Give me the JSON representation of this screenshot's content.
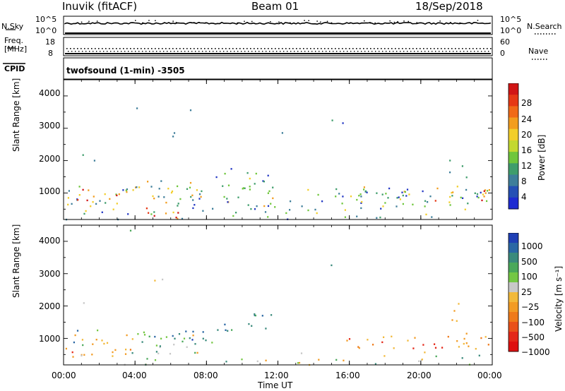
{
  "header": {
    "radar": "Inuvik (fitACF)",
    "beam": "Beam 01",
    "date": "18/Sep/2018"
  },
  "params": {
    "nsky_label": "N.Sky",
    "nsky_left_ticks": [
      "10^5",
      "10^0"
    ],
    "nsky_right_ticks": [
      "10^5",
      "10^0"
    ],
    "nsearch_label": "N.Search",
    "freq_label": "Freq.",
    "freq_unit": "[MHz]",
    "freq_ticks": [
      "18",
      "8"
    ],
    "nave_ticks": [
      "60",
      "0"
    ],
    "nave_label": "Nave",
    "cpid_label": "CPID",
    "cpid_value": "twofsound (1-min) -3505"
  },
  "chart_data": [
    {
      "type": "heatmap",
      "name": "power",
      "ylabel": "Slant Range [km]",
      "xlabel": "",
      "x_ticks": [
        "00:00",
        "04:00",
        "08:00",
        "12:00",
        "16:00",
        "20:00",
        "00:00"
      ],
      "y_ticks": [
        1000,
        2000,
        3000,
        4000
      ],
      "xlim_hours": [
        0,
        24
      ],
      "ylim_km": [
        180,
        4500
      ],
      "colorbar": {
        "label": "Power [dB]",
        "ticks": [
          "4",
          "8",
          "12",
          "16",
          "20",
          "24",
          "28"
        ],
        "colors": [
          "#1e2bd2",
          "#2550b5",
          "#3e7e9a",
          "#3f9d6c",
          "#6fc63c",
          "#c3d830",
          "#f2ce2a",
          "#f29d1e",
          "#f06a18",
          "#e63815",
          "#d11515"
        ]
      }
    },
    {
      "type": "heatmap",
      "name": "velocity",
      "ylabel": "Slant Range [km]",
      "xlabel": "Time UT",
      "x_ticks": [
        "00:00",
        "04:00",
        "08:00",
        "12:00",
        "16:00",
        "20:00",
        "00:00"
      ],
      "y_ticks": [
        1000,
        2000,
        3000,
        4000
      ],
      "xlim_hours": [
        0,
        24
      ],
      "ylim_km": [
        180,
        4500
      ],
      "colorbar": {
        "label": "Velocity [m s⁻¹]",
        "ticks": [
          "1000",
          "500",
          "100",
          "25",
          "−25",
          "−100",
          "−500",
          "−1000"
        ],
        "colors": [
          "#1f3fb5",
          "#2a67a4",
          "#3a8a7c",
          "#4aa85a",
          "#74c744",
          "#c8c8c8",
          "#f2b93a",
          "#f29b24",
          "#ef7a1a",
          "#e9511a",
          "#e42819",
          "#de1010"
        ]
      }
    }
  ]
}
